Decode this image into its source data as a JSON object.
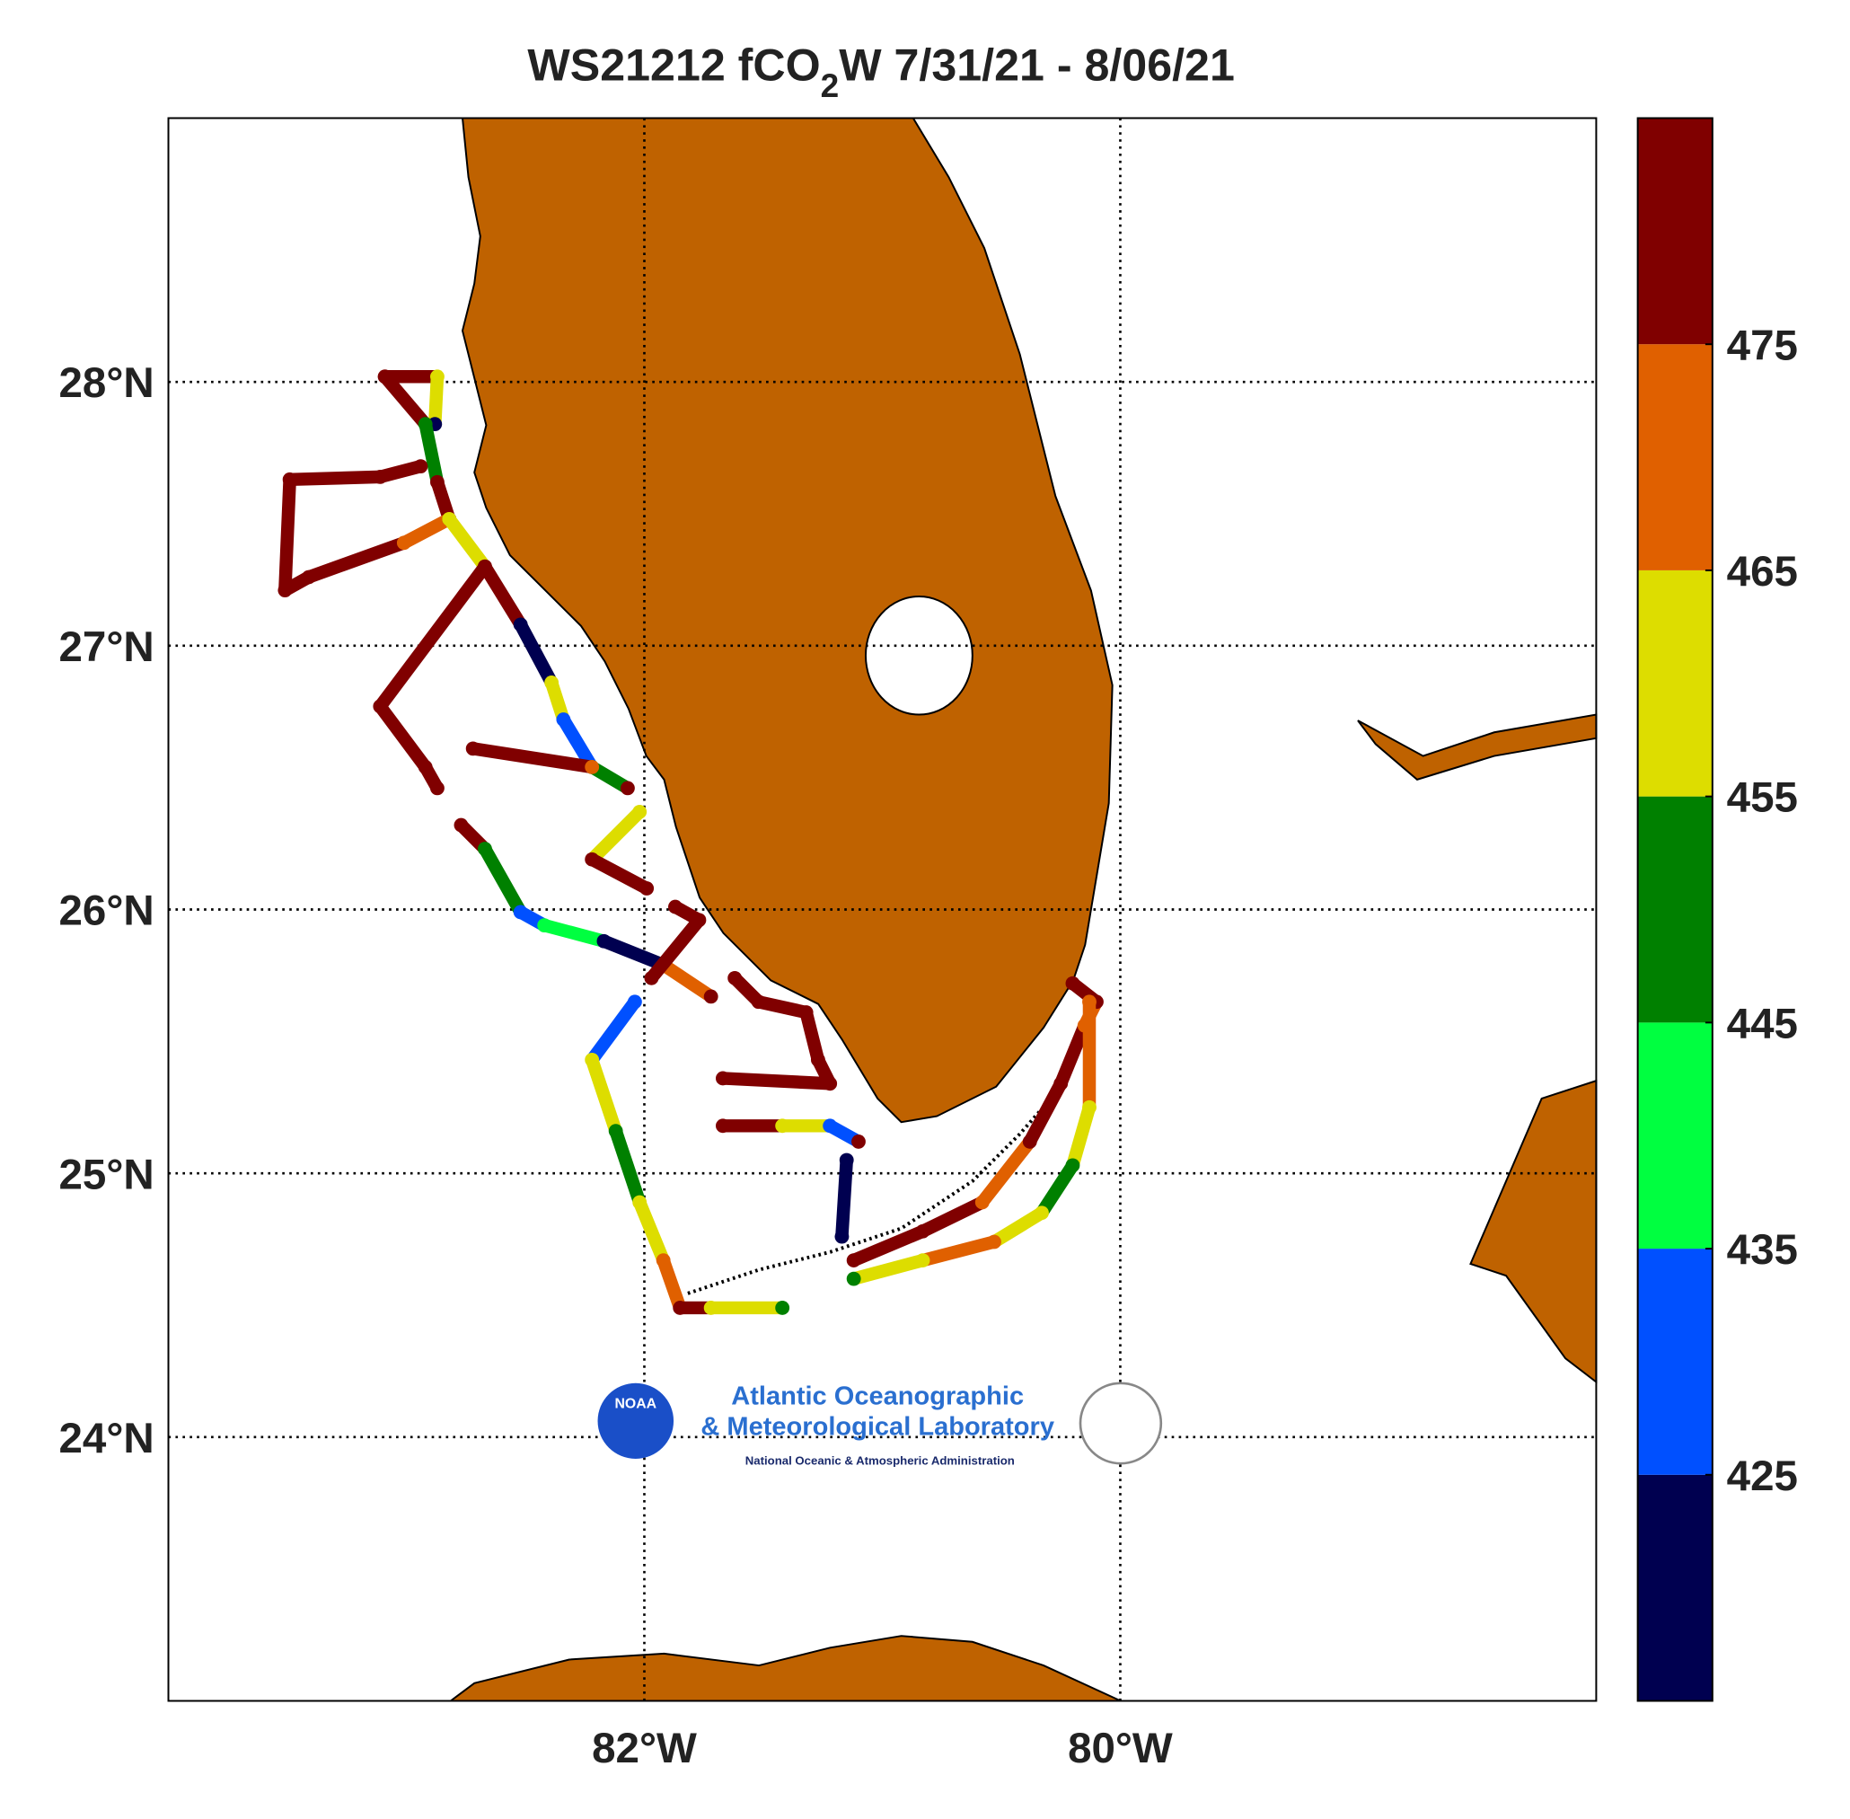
{
  "chart_data": {
    "type": "map",
    "title": {
      "before": "WS21212 fCO",
      "sub": "2",
      "after": "W 7/31/21 - 8/06/21"
    },
    "xlim": [
      -84,
      -78
    ],
    "ylim": [
      23,
      29
    ],
    "xticks": [
      {
        "value": -82,
        "label": "82°W"
      },
      {
        "value": -80,
        "label": "80°W"
      }
    ],
    "yticks": [
      {
        "value": 24,
        "label": "24°N"
      },
      {
        "value": 25,
        "label": "25°N"
      },
      {
        "value": 26,
        "label": "26°N"
      },
      {
        "value": 27,
        "label": "27°N"
      },
      {
        "value": 28,
        "label": "28°N"
      }
    ],
    "grid": true,
    "colorbar": {
      "bins": [
        415,
        425,
        435,
        445,
        455,
        465,
        475,
        485
      ],
      "colors": [
        "#000050",
        "#0050ff",
        "#00ff40",
        "#008000",
        "#dddd00",
        "#e06000",
        "#800000"
      ],
      "ticks": [
        425,
        435,
        445,
        455,
        465,
        475
      ]
    },
    "tracks": [
      {
        "lon": [
          -83.09,
          -82.87,
          -82.88
        ],
        "lat": [
          28.02,
          28.02,
          27.84
        ],
        "values": [
          480,
          460,
          420
        ]
      },
      {
        "lon": [
          -83.09,
          -82.92,
          -82.87,
          -82.82
        ],
        "lat": [
          28.02,
          27.84,
          27.62,
          27.48
        ],
        "values": [
          480,
          450,
          480,
          480
        ]
      },
      {
        "lon": [
          -82.94,
          -83.11,
          -83.49,
          -83.51,
          -83.41,
          -83.01,
          -82.82
        ],
        "lat": [
          27.68,
          27.64,
          27.63,
          27.21,
          27.26,
          27.39,
          27.48
        ],
        "values": [
          480,
          480,
          480,
          480,
          480,
          470,
          480
        ]
      },
      {
        "lon": [
          -82.82,
          -82.67,
          -82.52,
          -82.39,
          -82.34,
          -82.22,
          -82.07
        ],
        "lat": [
          27.48,
          27.3,
          27.08,
          26.86,
          26.72,
          26.54,
          26.46
        ],
        "values": [
          460,
          480,
          420,
          460,
          430,
          450,
          480
        ]
      },
      {
        "lon": [
          -82.67,
          -83.11,
          -82.92,
          -82.87
        ],
        "lat": [
          27.3,
          26.77,
          26.54,
          26.46
        ],
        "values": [
          480,
          480,
          480,
          480
        ]
      },
      {
        "lon": [
          -82.72,
          -82.22
        ],
        "lat": [
          26.61,
          26.54
        ],
        "values": [
          480,
          470
        ]
      },
      {
        "lon": [
          -82.77,
          -82.67,
          -82.52,
          -82.42,
          -82.17,
          -81.92,
          -81.72
        ],
        "lat": [
          26.32,
          26.23,
          25.99,
          25.94,
          25.88,
          25.79,
          25.67
        ],
        "values": [
          480,
          450,
          430,
          440,
          420,
          470,
          480
        ]
      },
      {
        "lon": [
          -82.02,
          -82.22,
          -81.99
        ],
        "lat": [
          26.37,
          26.19,
          26.08
        ],
        "values": [
          460,
          480,
          480
        ]
      },
      {
        "lon": [
          -81.87,
          -81.77,
          -81.97
        ],
        "lat": [
          26.01,
          25.96,
          25.74
        ],
        "values": [
          480,
          480,
          480
        ]
      },
      {
        "lon": [
          -82.04,
          -82.22,
          -82.12,
          -82.02,
          -81.92,
          -81.85,
          -81.72,
          -81.42
        ],
        "lat": [
          25.65,
          25.43,
          25.16,
          24.89,
          24.67,
          24.49,
          24.49,
          24.49
        ],
        "values": [
          430,
          460,
          450,
          460,
          470,
          480,
          460,
          450
        ]
      },
      {
        "lon": [
          -81.62,
          -81.52,
          -81.32,
          -81.27,
          -81.22,
          -81.67
        ],
        "lat": [
          25.74,
          25.65,
          25.61,
          25.43,
          25.34,
          25.36
        ],
        "values": [
          480,
          480,
          480,
          480,
          480,
          480
        ]
      },
      {
        "lon": [
          -81.67,
          -81.42,
          -81.22,
          -81.1
        ],
        "lat": [
          25.18,
          25.18,
          25.18,
          25.12
        ],
        "values": [
          480,
          460,
          430,
          480
        ]
      },
      {
        "lon": [
          -81.15,
          -81.17
        ],
        "lat": [
          25.05,
          24.76
        ],
        "values": [
          420,
          420
        ]
      },
      {
        "lon": [
          -81.12,
          -80.83,
          -80.58,
          -80.38,
          -80.25,
          -80.15,
          -80.1,
          -80.2
        ],
        "lat": [
          24.67,
          24.78,
          24.89,
          25.12,
          25.34,
          25.56,
          25.65,
          25.72
        ],
        "values": [
          480,
          480,
          470,
          480,
          480,
          470,
          480,
          480
        ]
      },
      {
        "lon": [
          -80.13,
          -80.13,
          -80.2,
          -80.33,
          -80.53,
          -80.83,
          -81.12
        ],
        "lat": [
          25.65,
          25.25,
          25.03,
          24.85,
          24.74,
          24.67,
          24.6
        ],
        "values": [
          465,
          460,
          450,
          460,
          465,
          460,
          450
        ]
      }
    ],
    "logo": {
      "badge": "NOAA",
      "line1": "Atlantic Oceanographic",
      "line2": "& Meteorological Laboratory",
      "line3": "National Oceanic & Atmospheric Administration"
    }
  }
}
